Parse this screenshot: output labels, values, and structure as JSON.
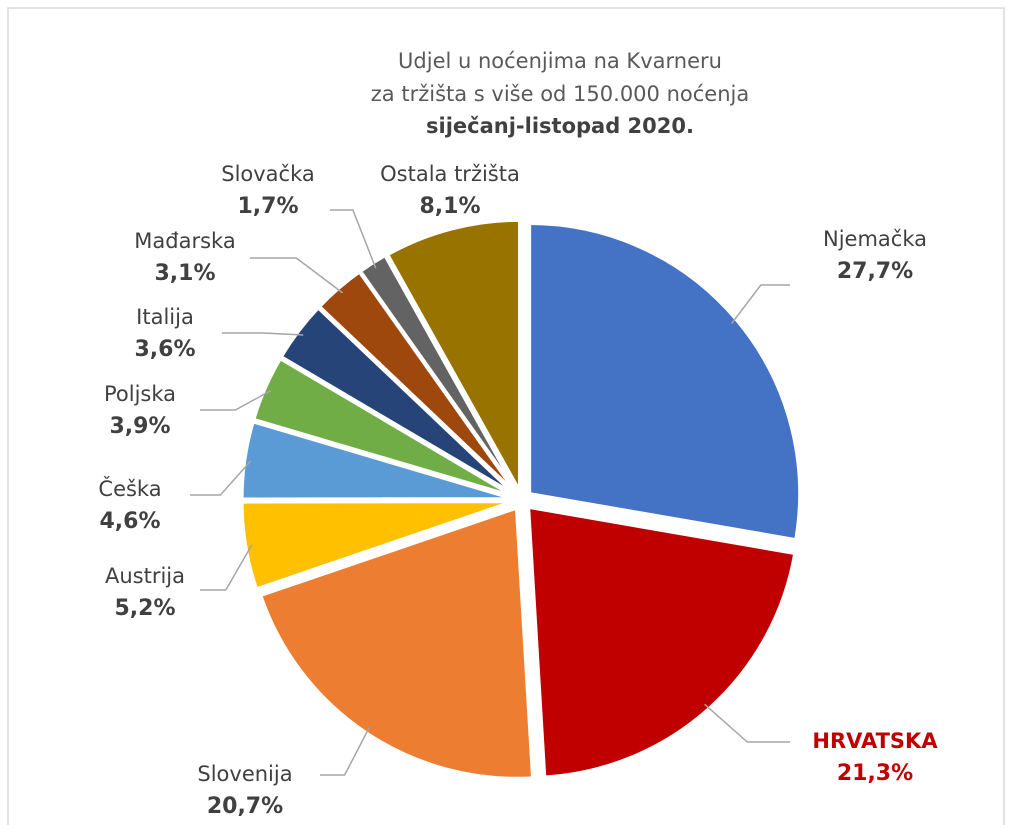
{
  "chart_data": {
    "type": "pie",
    "title": [
      "Udjel u noćenjima na Kvarneru",
      "za tržišta s više od 150.000 noćenja"
    ],
    "subtitle": "siječanj-listopad 2020.",
    "categories": [
      "Njemačka",
      "HRVATSKA",
      "Slovenija",
      "Austrija",
      "Češka",
      "Poljska",
      "Italija",
      "Mađarska",
      "Slovačka",
      "Ostala tržišta"
    ],
    "values": [
      27.7,
      21.3,
      20.7,
      5.2,
      4.6,
      3.9,
      3.6,
      3.1,
      1.7,
      8.1
    ],
    "value_labels": [
      "27,7%",
      "21,3%",
      "20,7%",
      "5,2%",
      "4,6%",
      "3,9%",
      "3,6%",
      "3,1%",
      "1,7%",
      "8,1%"
    ],
    "colors": [
      "#4472c4",
      "#c00000",
      "#ed7d31",
      "#ffc000",
      "#5b9bd5",
      "#70ad47",
      "#264478",
      "#9e480e",
      "#636363",
      "#997300"
    ]
  }
}
